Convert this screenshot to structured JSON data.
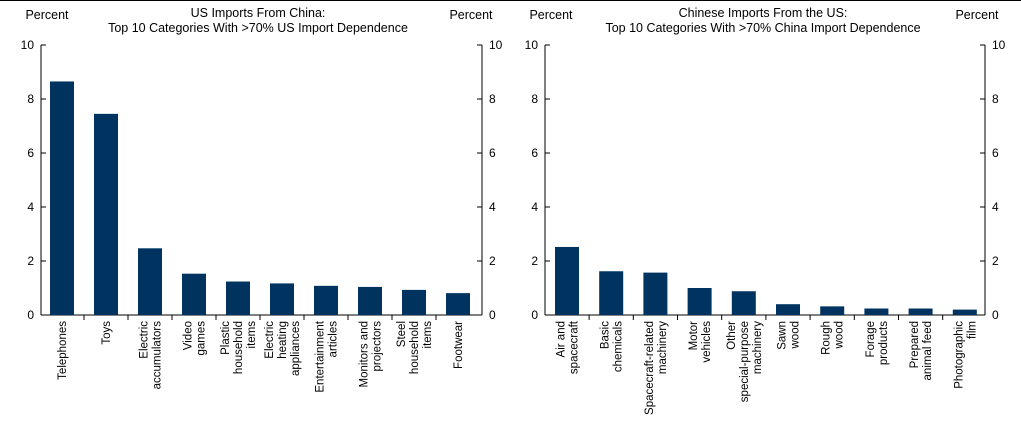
{
  "chart_data": [
    {
      "type": "bar",
      "title": [
        "US Imports From China:",
        "Top 10 Categories With >70% US Import Dependence"
      ],
      "ylabel_left": "Percent",
      "ylabel_right": "Percent",
      "ylim": [
        0,
        10
      ],
      "yticks": [
        0,
        2,
        4,
        6,
        8,
        10
      ],
      "grid": false,
      "color": "#003360",
      "categories": [
        [
          "Telephones"
        ],
        [
          "Toys"
        ],
        [
          "Electric",
          "accumulators"
        ],
        [
          "Video",
          "games"
        ],
        [
          "Plastic",
          "household",
          "items"
        ],
        [
          "Electric",
          "heating",
          "appliances"
        ],
        [
          "Entertainment",
          "articles"
        ],
        [
          "Monitors and",
          "projectors"
        ],
        [
          "Steel",
          "household",
          "items"
        ],
        [
          "Footwear"
        ]
      ],
      "values": [
        8.65,
        7.45,
        2.47,
        1.53,
        1.24,
        1.17,
        1.08,
        1.04,
        0.93,
        0.81
      ]
    },
    {
      "type": "bar",
      "title": [
        "Chinese Imports From the US:",
        "Top 10 Categories With >70% China Import Dependence"
      ],
      "ylabel_left": "Percent",
      "ylabel_right": "Percent",
      "ylim": [
        0,
        10
      ],
      "yticks": [
        0,
        2,
        4,
        6,
        8,
        10
      ],
      "grid": false,
      "color": "#003360",
      "categories": [
        [
          "Air and",
          "spacecraft"
        ],
        [
          "Basic",
          "chemicals"
        ],
        [
          "Spacecraft-related",
          "machinery"
        ],
        [
          "Motor",
          "vehicles"
        ],
        [
          "Other",
          "special-purpose",
          "machinery"
        ],
        [
          "Sawn",
          "wood"
        ],
        [
          "Rough",
          "wood"
        ],
        [
          "Forage",
          "products"
        ],
        [
          "Prepared",
          "animal feed"
        ],
        [
          "Photographic",
          "film"
        ]
      ],
      "values": [
        2.52,
        1.62,
        1.57,
        1.0,
        0.88,
        0.4,
        0.32,
        0.24,
        0.24,
        0.2
      ]
    }
  ]
}
